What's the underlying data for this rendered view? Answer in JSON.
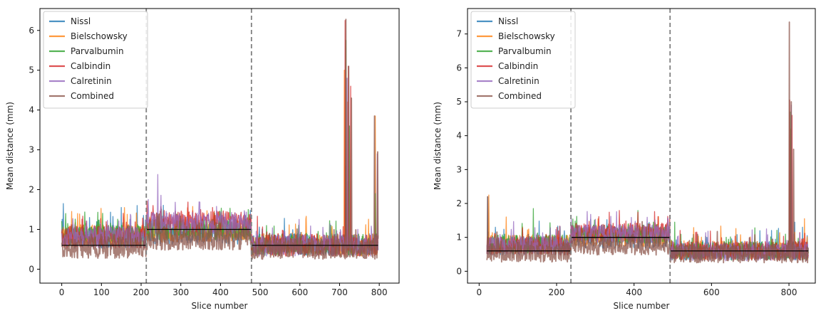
{
  "chart_data": [
    {
      "type": "line",
      "xlabel": "Slice number",
      "ylabel": "Mean distance (mm)",
      "xlim": [
        -55,
        850
      ],
      "ylim": [
        -0.35,
        6.55
      ],
      "xticks": [
        0,
        100,
        200,
        300,
        400,
        500,
        600,
        700,
        800
      ],
      "yticks": [
        0,
        1,
        2,
        3,
        4,
        5,
        6
      ],
      "xmax": 797,
      "boundaries": [
        213,
        478
      ],
      "level_lines": [
        {
          "x0": 0,
          "x1": 213,
          "y": 0.6
        },
        {
          "x0": 213,
          "x1": 478,
          "y": 1.0
        },
        {
          "x0": 478,
          "x1": 797,
          "y": 0.6
        }
      ],
      "legend_position": "top-left",
      "series": [
        {
          "name": "Nissl",
          "color": "#1f77b4",
          "segments": [
            {
              "x0": 0,
              "x1": 213,
              "base": 0.8
            },
            {
              "x0": 213,
              "x1": 478,
              "base": 0.9
            },
            {
              "x0": 478,
              "x1": 797,
              "base": 0.62
            }
          ],
          "spikes": [
            [
              4,
              1.65
            ],
            [
              150,
              1.55
            ],
            [
              190,
              1.6
            ],
            [
              715,
              2.6
            ],
            [
              720,
              2.2
            ]
          ]
        },
        {
          "name": "Bielschowsky",
          "color": "#ff7f0e",
          "segments": [
            {
              "x0": 0,
              "x1": 213,
              "base": 0.85
            },
            {
              "x0": 213,
              "x1": 478,
              "base": 0.95
            },
            {
              "x0": 478,
              "x1": 797,
              "base": 0.6
            }
          ],
          "spikes": [
            [
              25,
              1.45
            ],
            [
              40,
              1.4
            ],
            [
              680,
              0.95
            ],
            [
              712,
              5.0
            ],
            [
              720,
              4.2
            ],
            [
              790,
              3.85
            ]
          ]
        },
        {
          "name": "Parvalbumin",
          "color": "#2ca02c",
          "segments": [
            {
              "x0": 0,
              "x1": 213,
              "base": 0.85
            },
            {
              "x0": 213,
              "x1": 478,
              "base": 1.0
            },
            {
              "x0": 478,
              "x1": 797,
              "base": 0.62
            }
          ],
          "spikes": [
            [
              10,
              1.4
            ],
            [
              60,
              1.15
            ],
            [
              470,
              1.5
            ],
            [
              716,
              5.75
            ],
            [
              725,
              3.6
            ],
            [
              790,
              1.9
            ]
          ]
        },
        {
          "name": "Calbindin",
          "color": "#d62728",
          "segments": [
            {
              "x0": 0,
              "x1": 213,
              "base": 0.8
            },
            {
              "x0": 213,
              "x1": 478,
              "base": 1.2
            },
            {
              "x0": 478,
              "x1": 797,
              "base": 0.6
            }
          ],
          "spikes": [
            [
              230,
              1.6
            ],
            [
              380,
              1.55
            ],
            [
              714,
              6.25
            ],
            [
              722,
              5.1
            ],
            [
              728,
              4.6
            ]
          ]
        },
        {
          "name": "Calretinin",
          "color": "#9467bd",
          "segments": [
            {
              "x0": 0,
              "x1": 213,
              "base": 0.8
            },
            {
              "x0": 213,
              "x1": 478,
              "base": 1.15
            },
            {
              "x0": 478,
              "x1": 797,
              "base": 0.6
            }
          ],
          "spikes": [
            [
              242,
              2.38
            ],
            [
              218,
              1.75
            ],
            [
              719,
              4.8
            ],
            [
              795,
              2.9
            ]
          ]
        },
        {
          "name": "Combined",
          "color": "#8c564b",
          "segments": [
            {
              "x0": 0,
              "x1": 213,
              "base": 0.55
            },
            {
              "x0": 213,
              "x1": 478,
              "base": 0.75
            },
            {
              "x0": 478,
              "x1": 797,
              "base": 0.5
            }
          ],
          "spikes": [
            [
              716,
              6.28
            ],
            [
              723,
              5.1
            ],
            [
              730,
              4.3
            ],
            [
              788,
              3.85
            ],
            [
              796,
              2.95
            ]
          ]
        }
      ]
    },
    {
      "type": "line",
      "xlabel": "Slice number",
      "ylabel": "Mean distance (mm)",
      "xlim": [
        -30,
        868
      ],
      "ylim": [
        -0.35,
        7.75
      ],
      "xticks": [
        0,
        200,
        400,
        600,
        800
      ],
      "yticks": [
        0,
        1,
        2,
        3,
        4,
        5,
        6,
        7
      ],
      "xmin": 20,
      "xmax": 850,
      "boundaries": [
        237,
        493
      ],
      "level_lines": [
        {
          "x0": 20,
          "x1": 237,
          "y": 0.6
        },
        {
          "x0": 237,
          "x1": 493,
          "y": 1.0
        },
        {
          "x0": 493,
          "x1": 850,
          "y": 0.6
        }
      ],
      "legend_position": "top-left",
      "series": [
        {
          "name": "Nissl",
          "color": "#1f77b4",
          "segments": [
            {
              "x0": 20,
              "x1": 237,
              "base": 0.75
            },
            {
              "x0": 237,
              "x1": 493,
              "base": 0.95
            },
            {
              "x0": 493,
              "x1": 850,
              "base": 0.6
            }
          ],
          "spikes": [
            [
              22,
              2.2
            ],
            [
              815,
              1.45
            ],
            [
              835,
              1.3
            ]
          ]
        },
        {
          "name": "Bielschowsky",
          "color": "#ff7f0e",
          "segments": [
            {
              "x0": 20,
              "x1": 237,
              "base": 0.8
            },
            {
              "x0": 237,
              "x1": 493,
              "base": 1.0
            },
            {
              "x0": 493,
              "x1": 850,
              "base": 0.62
            }
          ],
          "spikes": [
            [
              25,
              2.25
            ],
            [
              70,
              1.6
            ],
            [
              805,
              4.2
            ],
            [
              840,
              1.55
            ]
          ]
        },
        {
          "name": "Parvalbumin",
          "color": "#2ca02c",
          "segments": [
            {
              "x0": 20,
              "x1": 237,
              "base": 0.8
            },
            {
              "x0": 237,
              "x1": 493,
              "base": 1.1
            },
            {
              "x0": 493,
              "x1": 850,
              "base": 0.6
            }
          ],
          "spikes": [
            [
              140,
              1.85
            ],
            [
              450,
              1.45
            ],
            [
              505,
              1.45
            ],
            [
              803,
              4.7
            ]
          ]
        },
        {
          "name": "Calbindin",
          "color": "#d62728",
          "segments": [
            {
              "x0": 20,
              "x1": 237,
              "base": 0.75
            },
            {
              "x0": 237,
              "x1": 493,
              "base": 1.15
            },
            {
              "x0": 493,
              "x1": 850,
              "base": 0.6
            }
          ],
          "spikes": [
            [
              802,
              5.05
            ],
            [
              808,
              4.6
            ]
          ]
        },
        {
          "name": "Calretinin",
          "color": "#9467bd",
          "segments": [
            {
              "x0": 20,
              "x1": 237,
              "base": 0.75
            },
            {
              "x0": 237,
              "x1": 493,
              "base": 1.1
            },
            {
              "x0": 493,
              "x1": 850,
              "base": 0.58
            }
          ],
          "spikes": [
            [
              340,
              1.62
            ],
            [
              806,
              4.9
            ]
          ]
        },
        {
          "name": "Combined",
          "color": "#8c564b",
          "segments": [
            {
              "x0": 20,
              "x1": 237,
              "base": 0.55
            },
            {
              "x0": 237,
              "x1": 493,
              "base": 0.75
            },
            {
              "x0": 493,
              "x1": 850,
              "base": 0.5
            }
          ],
          "spikes": [
            [
              22,
              2.2
            ],
            [
              801,
              7.35
            ],
            [
              806,
              5.0
            ],
            [
              812,
              3.6
            ]
          ]
        }
      ]
    }
  ]
}
